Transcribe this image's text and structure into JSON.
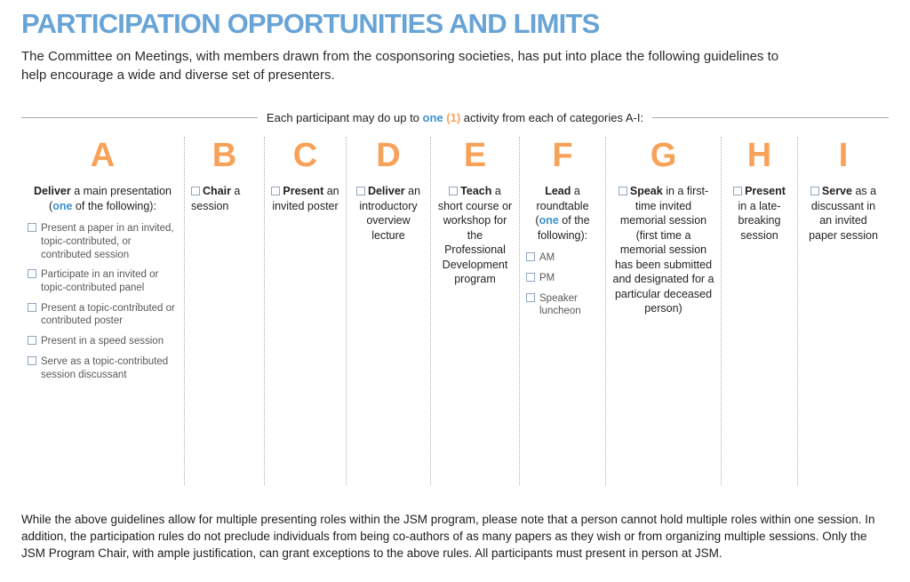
{
  "title": "PARTICIPATION OPPORTUNITIES AND LIMITS",
  "intro": "The Committee on Meetings, with members drawn from the cosponsoring societies, has put into place the following guidelines  to help encourage a wide and diverse set of presenters.",
  "divider": {
    "segments": [
      {
        "t": "Each participant may do up to ",
        "s": "n"
      },
      {
        "t": "one",
        "s": "blue"
      },
      {
        "t": " (1)",
        "s": "orange"
      },
      {
        "t": " activity from each of categories A-I:",
        "s": "n"
      }
    ]
  },
  "colors": {
    "title_blue": "#68a4d6",
    "category_letter_orange": "#f8a158",
    "accent_blue": "#3d92cf",
    "accent_orange": "#f6a259",
    "checkbox_border": "#8fa6c0",
    "body_text": "#231f20",
    "item_text_gray": "#58595b"
  },
  "categories": [
    {
      "letter": "A",
      "header_checkbox": false,
      "header": [
        {
          "t": "Deliver",
          "s": "b"
        },
        {
          "t": " a main presentation (",
          "s": "n"
        },
        {
          "t": "one",
          "s": "blue"
        },
        {
          "t": " of the following):",
          "s": "n"
        }
      ],
      "items": [
        "Present a paper in an invited, topic-contributed, or contributed session",
        "Participate in an invited or topic-contributed panel",
        "Present a topic-contributed or contributed poster",
        "Present in a speed session",
        "Serve as a topic-contributed session discussant"
      ]
    },
    {
      "letter": "B",
      "header_checkbox": true,
      "header": [
        {
          "t": "Chair",
          "s": "b"
        },
        {
          "t": " a session",
          "s": "n"
        }
      ],
      "items": []
    },
    {
      "letter": "C",
      "header_checkbox": true,
      "header": [
        {
          "t": "Present",
          "s": "b"
        },
        {
          "t": " an invited poster",
          "s": "n"
        }
      ],
      "items": []
    },
    {
      "letter": "D",
      "header_checkbox": true,
      "header": [
        {
          "t": "Deliver",
          "s": "b"
        },
        {
          "t": " an introductory overview lecture",
          "s": "n"
        }
      ],
      "items": []
    },
    {
      "letter": "E",
      "header_checkbox": true,
      "header": [
        {
          "t": "Teach",
          "s": "b"
        },
        {
          "t": " a short course or workshop for the Professional Development program",
          "s": "n"
        }
      ],
      "items": []
    },
    {
      "letter": "F",
      "header_checkbox": false,
      "header": [
        {
          "t": "Lead",
          "s": "b"
        },
        {
          "t": " a roundtable (",
          "s": "n"
        },
        {
          "t": "one",
          "s": "blue"
        },
        {
          "t": " of the following):",
          "s": "n"
        }
      ],
      "items": [
        "AM",
        "PM",
        "Speaker luncheon"
      ]
    },
    {
      "letter": "G",
      "header_checkbox": true,
      "header": [
        {
          "t": "Speak",
          "s": "b"
        },
        {
          "t": " in a first-time invited memorial session (first time a memorial session has been submitted and designated for a particular deceased person)",
          "s": "n"
        }
      ],
      "items": []
    },
    {
      "letter": "H",
      "header_checkbox": true,
      "header": [
        {
          "t": "Present",
          "s": "b"
        },
        {
          "t": " in a late-breaking session",
          "s": "n"
        }
      ],
      "items": []
    },
    {
      "letter": "I",
      "header_checkbox": true,
      "header": [
        {
          "t": "Serve",
          "s": "b"
        },
        {
          "t": " as a discussant in an invited paper session",
          "s": "n"
        }
      ],
      "items": []
    }
  ],
  "footer": "While the above guidelines allow for multiple presenting roles within the JSM program, please note that a person cannot hold multiple roles within one session. In addition, the participation rules do not preclude individuals from being co-authors of as many papers as they wish or from organizing multiple sessions. Only the JSM Program Chair, with ample justification, can grant exceptions to the above rules. All participants must present in person at JSM."
}
